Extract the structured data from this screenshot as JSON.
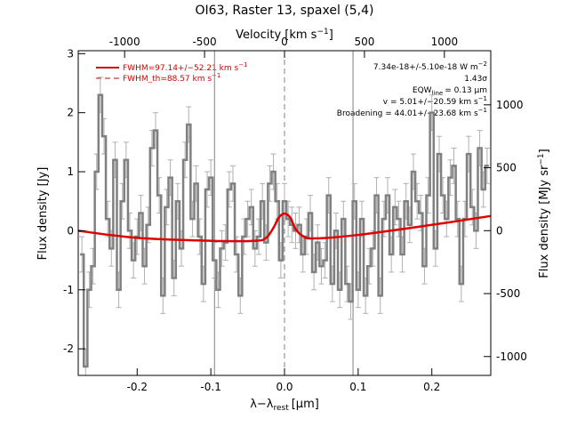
{
  "chart_data": {
    "type": "line",
    "title": "OI63, Raster 13, spaxel (5,4)",
    "xlabel": "λ−λ",
    "xlabel_sub": "rest",
    "xlabel_unit": "[μm]",
    "ylabel": "Flux density [Jy]",
    "ylabel_right": "Flux density [MJy sr",
    "ylabel_right_sup": "−1",
    "ylabel_right_end": "]",
    "top_xlabel": "Velocity [km s",
    "top_xlabel_sup": "−1",
    "top_xlabel_end": "]",
    "xlim": [
      -0.28,
      0.28
    ],
    "ylim": [
      -2.45,
      3.05
    ],
    "top_xlim": [
      -1290,
      1290
    ],
    "right_ylim": [
      -1150,
      1430
    ],
    "x_ticks": [
      "-0.2",
      "-0.1",
      "0.0",
      "0.1",
      "0.2"
    ],
    "x_tick_values": [
      -0.2,
      -0.1,
      0.0,
      0.1,
      0.2
    ],
    "y_ticks": [
      "-2",
      "-1",
      "0",
      "1",
      "2",
      "3"
    ],
    "y_tick_values": [
      -2,
      -1,
      0,
      1,
      2,
      3
    ],
    "top_x_ticks": [
      "-1000",
      "-500",
      "0",
      "500",
      "1000"
    ],
    "top_x_tick_values": [
      -1000,
      -500,
      0,
      500,
      1000
    ],
    "right_y_ticks": [
      "-1000",
      "-500",
      "0",
      "500",
      "1000"
    ],
    "right_y_tick_values": [
      -1000,
      -500,
      0,
      500,
      1000
    ],
    "vertical_lines_x": [
      -0.095,
      0.0,
      0.093
    ],
    "annotations": [
      "7.34e-18+/-5.10e-18 W m",
      "1.43σ",
      "EQW",
      "= 0.13 μm",
      "v = 5.01+/−20.59 km s",
      "Broadening = 44.01+/−23.68 km s"
    ],
    "annotation_sup_wm": "−2",
    "annotation_eqw_sub": "line",
    "annotation_sup_kms": "−1",
    "legend": [
      {
        "label": "FWHM=97.14+/−52.21 km s",
        "sup": "−1",
        "style": "solid"
      },
      {
        "label": "FWHM_th=88.57 km s",
        "sup": "−1",
        "style": "dashed"
      }
    ],
    "colors": {
      "data": "#808080",
      "model": "#e00000",
      "axis": "#000000",
      "gridline": "#808080"
    },
    "series": [
      {
        "name": "data",
        "x": [
          -0.275,
          -0.27,
          -0.265,
          -0.26,
          -0.255,
          -0.25,
          -0.245,
          -0.24,
          -0.235,
          -0.23,
          -0.225,
          -0.22,
          -0.215,
          -0.21,
          -0.205,
          -0.2,
          -0.195,
          -0.19,
          -0.185,
          -0.18,
          -0.175,
          -0.17,
          -0.165,
          -0.16,
          -0.155,
          -0.15,
          -0.145,
          -0.14,
          -0.135,
          -0.13,
          -0.125,
          -0.12,
          -0.115,
          -0.11,
          -0.105,
          -0.1,
          -0.095,
          -0.09,
          -0.085,
          -0.08,
          -0.075,
          -0.07,
          -0.065,
          -0.06,
          -0.055,
          -0.05,
          -0.045,
          -0.04,
          -0.035,
          -0.03,
          -0.025,
          -0.02,
          -0.015,
          -0.01,
          -0.005,
          0.0,
          0.005,
          0.01,
          0.015,
          0.02,
          0.025,
          0.03,
          0.035,
          0.04,
          0.045,
          0.05,
          0.055,
          0.06,
          0.065,
          0.07,
          0.075,
          0.08,
          0.085,
          0.09,
          0.095,
          0.1,
          0.105,
          0.11,
          0.115,
          0.12,
          0.125,
          0.13,
          0.135,
          0.14,
          0.145,
          0.15,
          0.155,
          0.16,
          0.165,
          0.17,
          0.175,
          0.18,
          0.185,
          0.19,
          0.195,
          0.2,
          0.205,
          0.21,
          0.215,
          0.22,
          0.225,
          0.23,
          0.235,
          0.24,
          0.245,
          0.25,
          0.255,
          0.26,
          0.265,
          0.27,
          0.275
        ],
        "y": [
          -0.4,
          -2.3,
          -1.0,
          -0.6,
          1.0,
          2.3,
          1.6,
          0.2,
          -0.3,
          1.2,
          -1.0,
          0.5,
          1.2,
          0.0,
          -0.5,
          -0.1,
          0.3,
          -0.6,
          0.1,
          1.4,
          1.7,
          0.6,
          -1.1,
          0.4,
          0.9,
          -0.8,
          0.5,
          -0.3,
          1.2,
          1.8,
          0.2,
          0.8,
          -0.1,
          -0.9,
          0.7,
          0.9,
          -0.5,
          -1.0,
          -0.3,
          -0.2,
          0.7,
          0.8,
          -0.4,
          -1.1,
          -0.1,
          0.2,
          0.4,
          -0.3,
          -0.1,
          0.5,
          -0.2,
          0.8,
          1.0,
          0.5,
          -0.5,
          0.5,
          0.2,
          0.1,
          0.0,
          0.1,
          -0.4,
          -0.1,
          0.3,
          -0.7,
          -0.2,
          -0.6,
          -0.5,
          0.6,
          -0.9,
          0.0,
          -1.0,
          0.2,
          -0.9,
          -1.2,
          0.5,
          -1.0,
          0.2,
          -1.1,
          -0.6,
          -0.3,
          0.6,
          -1.1,
          0.2,
          0.6,
          -0.4,
          0.4,
          0.2,
          -0.4,
          0.5,
          0.1,
          1.0,
          0.5,
          0.3,
          -0.6,
          0.6,
          2.0,
          -0.3,
          1.3,
          0.6,
          0.2,
          0.9,
          1.1,
          0.2,
          -0.9,
          0.2,
          1.3,
          0.4,
          0.0,
          1.4,
          0.7,
          1.1
        ],
        "yerr": 0.3
      },
      {
        "name": "fit",
        "x": [
          -0.28,
          -0.2,
          -0.1,
          -0.04,
          -0.025,
          -0.015,
          -0.008,
          0.0,
          0.008,
          0.015,
          0.025,
          0.04,
          0.1,
          0.2,
          0.28
        ],
        "y": [
          0.0,
          -0.12,
          -0.17,
          -0.17,
          -0.12,
          0.05,
          0.22,
          0.29,
          0.22,
          0.03,
          -0.09,
          -0.13,
          -0.07,
          0.1,
          0.25
        ]
      }
    ]
  }
}
